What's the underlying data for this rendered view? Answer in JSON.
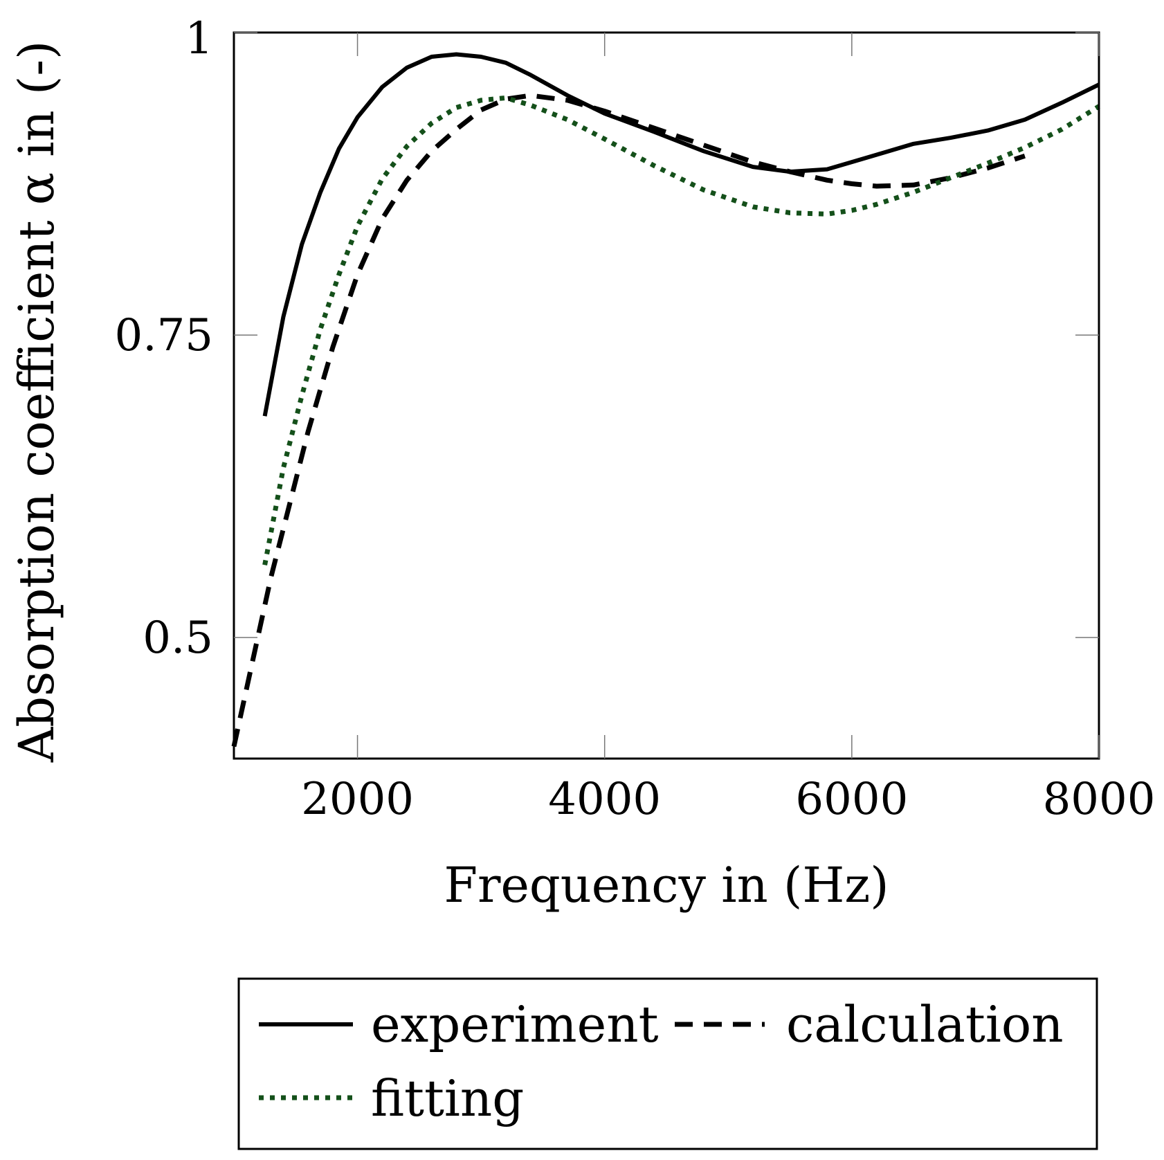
{
  "chart_data": {
    "type": "line",
    "title": "",
    "xlabel": "Frequency in (Hz)",
    "ylabel": "Absorption coefficient α in (-)",
    "xlim": [
      1000,
      8000
    ],
    "ylim": [
      0.4,
      1.0
    ],
    "xticks": [
      2000,
      4000,
      6000,
      8000
    ],
    "xtick_labels": [
      "2000",
      "4000",
      "6000",
      "8000"
    ],
    "yticks": [
      0.5,
      0.75,
      1
    ],
    "ytick_labels": [
      "0.5",
      "0.75",
      "1"
    ],
    "grid": false,
    "legend_position": "bottom-center",
    "series": [
      {
        "name": "experiment",
        "style": "solid",
        "color": "#000000",
        "x": [
          1250,
          1400,
          1550,
          1700,
          1850,
          2000,
          2200,
          2400,
          2600,
          2800,
          3000,
          3200,
          3400,
          3700,
          4000,
          4400,
          4800,
          5200,
          5500,
          5800,
          6000,
          6200,
          6500,
          6800,
          7100,
          7400,
          7700,
          8000
        ],
        "y": [
          0.683,
          0.765,
          0.825,
          0.868,
          0.904,
          0.93,
          0.955,
          0.971,
          0.98,
          0.982,
          0.98,
          0.975,
          0.965,
          0.948,
          0.933,
          0.918,
          0.902,
          0.889,
          0.885,
          0.887,
          0.893,
          0.899,
          0.908,
          0.913,
          0.919,
          0.928,
          0.942,
          0.957
        ]
      },
      {
        "name": "calculation",
        "style": "dashed",
        "color": "#000000",
        "x": [
          1000,
          1150,
          1300,
          1450,
          1600,
          1800,
          2000,
          2200,
          2400,
          2600,
          2800,
          3000,
          3200,
          3400,
          3700,
          4000,
          4400,
          4800,
          5200,
          5500,
          5800,
          6000,
          6200,
          6500,
          6800,
          7100,
          7400
        ],
        "y": [
          0.41,
          0.48,
          0.55,
          0.61,
          0.67,
          0.74,
          0.8,
          0.846,
          0.878,
          0.902,
          0.92,
          0.936,
          0.945,
          0.948,
          0.944,
          0.935,
          0.921,
          0.907,
          0.893,
          0.885,
          0.878,
          0.875,
          0.873,
          0.874,
          0.88,
          0.888,
          0.898
        ]
      },
      {
        "name": "fitting",
        "style": "dotted",
        "color": "#14501a",
        "x": [
          1250,
          1400,
          1550,
          1700,
          1850,
          2000,
          2200,
          2400,
          2600,
          2800,
          3000,
          3200,
          3400,
          3700,
          4000,
          4400,
          4800,
          5200,
          5500,
          5800,
          6000,
          6200,
          6500,
          6800,
          7100,
          7400,
          7700,
          8000
        ],
        "y": [
          0.56,
          0.64,
          0.7,
          0.755,
          0.8,
          0.84,
          0.879,
          0.906,
          0.925,
          0.938,
          0.944,
          0.946,
          0.94,
          0.928,
          0.912,
          0.89,
          0.87,
          0.856,
          0.851,
          0.85,
          0.853,
          0.858,
          0.868,
          0.88,
          0.892,
          0.905,
          0.92,
          0.939
        ]
      }
    ]
  }
}
